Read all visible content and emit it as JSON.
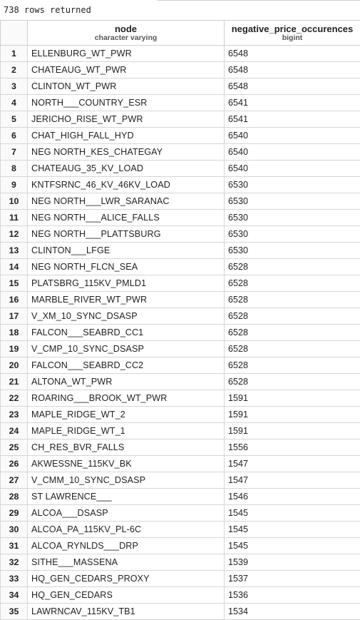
{
  "status": {
    "text": "738 rows returned"
  },
  "columns": [
    {
      "name": "node",
      "type": "character varying"
    },
    {
      "name": "negative_price_occurences",
      "type": "bigint"
    }
  ],
  "rows": [
    {
      "index": "1",
      "node": "ELLENBURG_WT_PWR",
      "negative_price_occurences": "6548"
    },
    {
      "index": "2",
      "node": "CHATEAUG_WT_PWR",
      "negative_price_occurences": "6548"
    },
    {
      "index": "3",
      "node": "CLINTON_WT_PWR",
      "negative_price_occurences": "6548"
    },
    {
      "index": "4",
      "node": "NORTH___COUNTRY_ESR",
      "negative_price_occurences": "6541"
    },
    {
      "index": "5",
      "node": "JERICHO_RISE_WT_PWR",
      "negative_price_occurences": "6541"
    },
    {
      "index": "6",
      "node": "CHAT_HIGH_FALL_HYD",
      "negative_price_occurences": "6540"
    },
    {
      "index": "7",
      "node": "NEG NORTH_KES_CHATEGAY",
      "negative_price_occurences": "6540"
    },
    {
      "index": "8",
      "node": "CHATEAUG_35_KV_LOAD",
      "negative_price_occurences": "6540"
    },
    {
      "index": "9",
      "node": "KNTFSRNC_46_KV_46KV_LOAD",
      "negative_price_occurences": "6530"
    },
    {
      "index": "10",
      "node": "NEG NORTH___LWR_SARANAC",
      "negative_price_occurences": "6530"
    },
    {
      "index": "11",
      "node": "NEG NORTH___ALICE_FALLS",
      "negative_price_occurences": "6530"
    },
    {
      "index": "12",
      "node": "NEG NORTH___PLATTSBURG",
      "negative_price_occurences": "6530"
    },
    {
      "index": "13",
      "node": "CLINTON___LFGE",
      "negative_price_occurences": "6530"
    },
    {
      "index": "14",
      "node": "NEG NORTH_FLCN_SEA",
      "negative_price_occurences": "6528"
    },
    {
      "index": "15",
      "node": "PLATSBRG_115KV_PMLD1",
      "negative_price_occurences": "6528"
    },
    {
      "index": "16",
      "node": "MARBLE_RIVER_WT_PWR",
      "negative_price_occurences": "6528"
    },
    {
      "index": "17",
      "node": "V_XM_10_SYNC_DSASP",
      "negative_price_occurences": "6528"
    },
    {
      "index": "18",
      "node": "FALCON___SEABRD_CC1",
      "negative_price_occurences": "6528"
    },
    {
      "index": "19",
      "node": "V_CMP_10_SYNC_DSASP",
      "negative_price_occurences": "6528"
    },
    {
      "index": "20",
      "node": "FALCON___SEABRD_CC2",
      "negative_price_occurences": "6528"
    },
    {
      "index": "21",
      "node": "ALTONA_WT_PWR",
      "negative_price_occurences": "6528"
    },
    {
      "index": "22",
      "node": "ROARING___BROOK_WT_PWR",
      "negative_price_occurences": "1591"
    },
    {
      "index": "23",
      "node": "MAPLE_RIDGE_WT_2",
      "negative_price_occurences": "1591"
    },
    {
      "index": "24",
      "node": "MAPLE_RIDGE_WT_1",
      "negative_price_occurences": "1591"
    },
    {
      "index": "25",
      "node": "CH_RES_BVR_FALLS",
      "negative_price_occurences": "1556"
    },
    {
      "index": "26",
      "node": "AKWESSNE_115KV_BK",
      "negative_price_occurences": "1547"
    },
    {
      "index": "27",
      "node": "V_CMM_10_SYNC_DSASP",
      "negative_price_occurences": "1547"
    },
    {
      "index": "28",
      "node": "ST LAWRENCE___",
      "negative_price_occurences": "1546"
    },
    {
      "index": "29",
      "node": "ALCOA___DSASP",
      "negative_price_occurences": "1545"
    },
    {
      "index": "30",
      "node": "ALCOA_PA_115KV_PL-6C",
      "negative_price_occurences": "1545"
    },
    {
      "index": "31",
      "node": "ALCOA_RYNLDS___DRP",
      "negative_price_occurences": "1545"
    },
    {
      "index": "32",
      "node": "SITHE___MASSENA",
      "negative_price_occurences": "1539"
    },
    {
      "index": "33",
      "node": "HQ_GEN_CEDARS_PROXY",
      "negative_price_occurences": "1537"
    },
    {
      "index": "34",
      "node": "HQ_GEN_CEDARS",
      "negative_price_occurences": "1536"
    },
    {
      "index": "35",
      "node": "LAWRNCAV_115KV_TB1",
      "negative_price_occurences": "1534"
    }
  ]
}
